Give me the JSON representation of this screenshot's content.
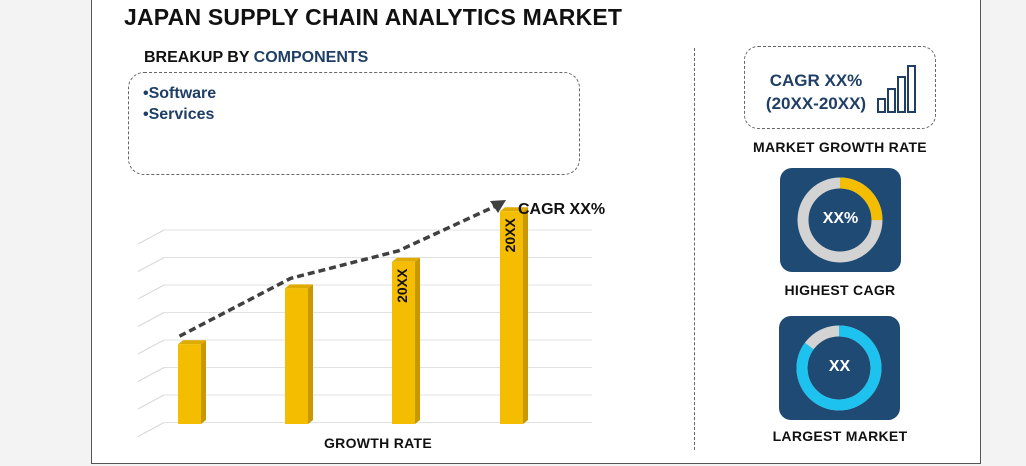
{
  "header": {
    "title": "JAPAN SUPPLY CHAIN ANALYTICS MARKET"
  },
  "breakup": {
    "prefix": "BREAKUP BY",
    "accent": "COMPONENTS",
    "items": [
      "Software",
      "Services"
    ]
  },
  "chart_data": {
    "type": "bar",
    "categories": [
      "",
      "",
      "",
      ""
    ],
    "values": [
      30,
      51,
      61,
      80
    ],
    "data_labels": [
      "",
      "",
      "20XX",
      "20XX"
    ],
    "trend_label": "CAGR XX%",
    "xlabel": "GROWTH RATE",
    "ylabel": "",
    "ylim": [
      0,
      85
    ],
    "grid": true,
    "colors": {
      "bar": "#f5bd00",
      "bar_side": "#c99700",
      "trend": "#404040"
    }
  },
  "right_panel": {
    "cagr_line1": "CAGR XX%",
    "cagr_line2": "(20XX-20XX)",
    "growth_label": "MARKET GROWTH RATE",
    "highest": {
      "value": "XX%",
      "label": "HIGHEST CAGR",
      "ring_fraction": 0.25,
      "ring_color": "#f5bd00"
    },
    "largest": {
      "value": "XX",
      "label": "LARGEST MARKET",
      "ring_fraction": 0.85,
      "ring_color": "#1ec2ef"
    },
    "tile_color": "#1f4a73",
    "text_color": "#1f3f66"
  }
}
